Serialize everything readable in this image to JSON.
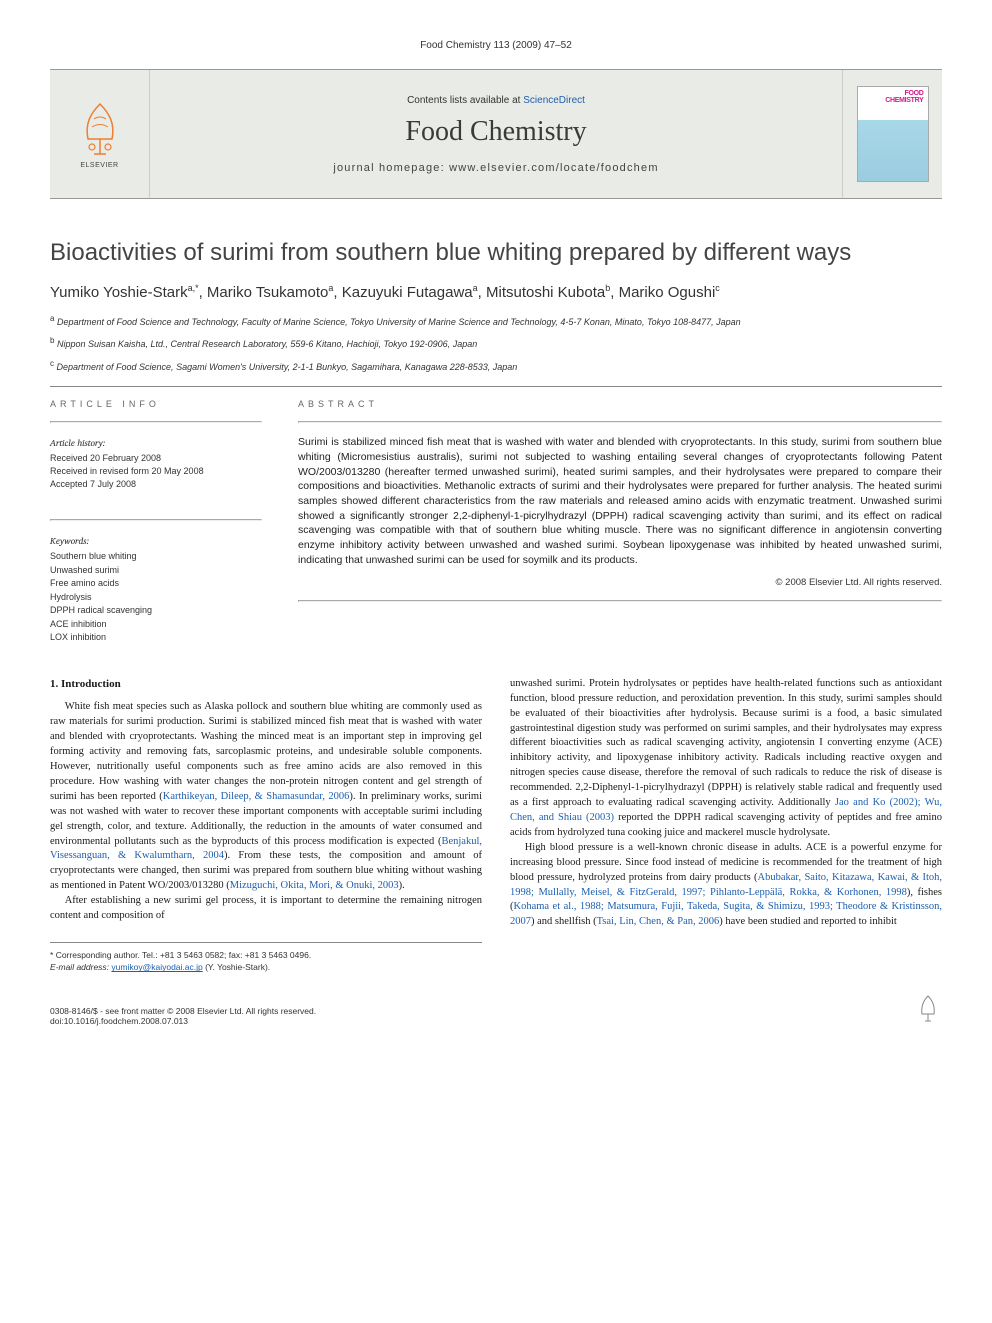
{
  "running_header": "Food Chemistry 113 (2009) 47–52",
  "masthead": {
    "contents_prefix": "Contents lists available at ",
    "contents_link": "ScienceDirect",
    "journal_name": "Food Chemistry",
    "homepage_prefix": "journal homepage: ",
    "homepage_url": "www.elsevier.com/locate/foodchem",
    "publisher_name": "ELSEVIER",
    "cover_top_1": "FOOD",
    "cover_top_2": "CHEMISTRY"
  },
  "article": {
    "title": "Bioactivities of surimi from southern blue whiting prepared by different ways",
    "authors_html": "Yumiko Yoshie-Stark<sup>a,*</sup>, Mariko Tsukamoto<sup>a</sup>, Kazuyuki Futagawa<sup>a</sup>, Mitsutoshi Kubota<sup>b</sup>, Mariko Ogushi<sup>c</sup>",
    "affiliations": [
      {
        "sup": "a",
        "text": "Department of Food Science and Technology, Faculty of Marine Science, Tokyo University of Marine Science and Technology, 4-5-7 Konan, Minato, Tokyo 108-8477, Japan"
      },
      {
        "sup": "b",
        "text": "Nippon Suisan Kaisha, Ltd., Central Research Laboratory, 559-6 Kitano, Hachioji, Tokyo 192-0906, Japan"
      },
      {
        "sup": "c",
        "text": "Department of Food Science, Sagami Women's University, 2-1-1 Bunkyo, Sagamihara, Kanagawa 228-8533, Japan"
      }
    ]
  },
  "info": {
    "heading": "ARTICLE INFO",
    "history_label": "Article history:",
    "received": "Received 20 February 2008",
    "revised": "Received in revised form 20 May 2008",
    "accepted": "Accepted 7 July 2008",
    "keywords_label": "Keywords:",
    "keywords": [
      "Southern blue whiting",
      "Unwashed surimi",
      "Free amino acids",
      "Hydrolysis",
      "DPPH radical scavenging",
      "ACE inhibition",
      "LOX inhibition"
    ]
  },
  "abstract": {
    "heading": "ABSTRACT",
    "text": "Surimi is stabilized minced fish meat that is washed with water and blended with cryoprotectants. In this study, surimi from southern blue whiting (Micromesistius australis), surimi not subjected to washing entailing several changes of cryoprotectants following Patent WO/2003/013280 (hereafter termed unwashed surimi), heated surimi samples, and their hydrolysates were prepared to compare their compositions and bioactivities. Methanolic extracts of surimi and their hydrolysates were prepared for further analysis. The heated surimi samples showed different characteristics from the raw materials and released amino acids with enzymatic treatment. Unwashed surimi showed a significantly stronger 2,2-diphenyl-1-picrylhydrazyl (DPPH) radical scavenging activity than surimi, and its effect on radical scavenging was compatible with that of southern blue whiting muscle. There was no significant difference in angiotensin converting enzyme inhibitory activity between unwashed and washed surimi. Soybean lipoxygenase was inhibited by heated unwashed surimi, indicating that unwashed surimi can be used for soymilk and its products.",
    "copyright": "© 2008 Elsevier Ltd. All rights reserved."
  },
  "body": {
    "section1_heading": "1. Introduction",
    "col1_p1": "White fish meat species such as Alaska pollock and southern blue whiting are commonly used as raw materials for surimi production. Surimi is stabilized minced fish meat that is washed with water and blended with cryoprotectants. Washing the minced meat is an important step in improving gel forming activity and removing fats, sarcoplasmic proteins, and undesirable soluble components. However, nutritionally useful components such as free amino acids are also removed in this procedure. How washing with water changes the non-protein nitrogen content and gel strength of surimi has been reported (",
    "col1_p1_cite1": "Karthikeyan, Dileep, & Shamasundar, 2006",
    "col1_p1b": "). In preliminary works, surimi was not washed with water to recover these important components with acceptable surimi including gel strength, color, and texture. Additionally, the reduction in the amounts of water consumed and environmental pollutants such as the byproducts of this process modification is expected (",
    "col1_p1_cite2": "Benjakul, Visessanguan, & Kwalumtharn, 2004",
    "col1_p1c": "). From these tests, the composition and amount of cryoprotectants were changed, then surimi was prepared from southern blue whiting without washing as mentioned in Patent WO/2003/013280 (",
    "col1_p1_cite3": "Mizuguchi, Okita, Mori, & Onuki, 2003",
    "col1_p1d": ").",
    "col1_p2": "After establishing a new surimi gel process, it is important to determine the remaining nitrogen content and composition of",
    "col2_p1": "unwashed surimi. Protein hydrolysates or peptides have health-related functions such as antioxidant function, blood pressure reduction, and peroxidation prevention. In this study, surimi samples should be evaluated of their bioactivities after hydrolysis. Because surimi is a food, a basic simulated gastrointestinal digestion study was performed on surimi samples, and their hydrolysates may express different bioactivities such as radical scavenging activity, angiotensin I converting enzyme (ACE) inhibitory activity, and lipoxygenase inhibitory activity. Radicals including reactive oxygen and nitrogen species cause disease, therefore the removal of such radicals to reduce the risk of disease is recommended. 2,2-Diphenyl-1-picrylhydrazyl (DPPH) is relatively stable radical and frequently used as a first approach to evaluating radical scavenging activity. Additionally ",
    "col2_p1_cite1": "Jao and Ko (2002); Wu, Chen, and Shiau (2003)",
    "col2_p1b": " reported the DPPH radical scavenging activity of peptides and free amino acids from hydrolyzed tuna cooking juice and mackerel muscle hydrolysate.",
    "col2_p2": "High blood pressure is a well-known chronic disease in adults. ACE is a powerful enzyme for increasing blood pressure. Since food instead of medicine is recommended for the treatment of high blood pressure, hydrolyzed proteins from dairy products (",
    "col2_p2_cite1": "Abubakar, Saito, Kitazawa, Kawai, & Itoh, 1998; Mullally, Meisel, & FitzGerald, 1997; Pihlanto-Leppälä, Rokka, & Korhonen, 1998",
    "col2_p2b": "), fishes (",
    "col2_p2_cite2": "Kohama et al., 1988; Matsumura, Fujii, Takeda, Sugita, & Shimizu, 1993; Theodore & Kristinsson, 2007",
    "col2_p2c": ") and shellfish (",
    "col2_p2_cite3": "Tsai, Lin, Chen, & Pan, 2006",
    "col2_p2d": ") have been studied and reported to inhibit"
  },
  "corresponding": {
    "star": "*",
    "line1": "Corresponding author. Tel.: +81 3 5463 0582; fax: +81 3 5463 0496.",
    "email_label": "E-mail address: ",
    "email": "yumikoy@kaiyodai.ac.jp",
    "email_suffix": " (Y. Yoshie-Stark)."
  },
  "footer": {
    "left_line1": "0308-8146/$ - see front matter © 2008 Elsevier Ltd. All rights reserved.",
    "left_line2": "doi:10.1016/j.foodchem.2008.07.013"
  },
  "colors": {
    "link": "#1d5faf",
    "rule": "#888888",
    "masthead_bg": "#e8ebe6",
    "cover_accent": "#d4178c",
    "cover_bg": "#a8d8e8",
    "elsevier_orange": "#ee7d30"
  },
  "typography": {
    "title_fontsize": 24,
    "authors_fontsize": 15,
    "body_fontsize": 10.5,
    "abstract_fontsize": 10.5,
    "meta_fontsize": 9,
    "journal_name_fontsize": 28
  }
}
